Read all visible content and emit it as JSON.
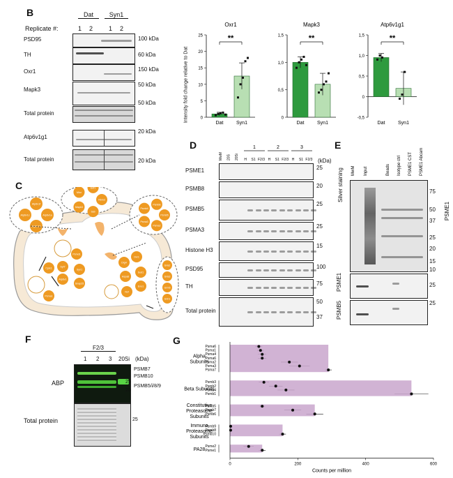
{
  "panel_b": {
    "label": "B",
    "replicate_label": "Replicate #:",
    "groups": [
      "Dat",
      "Syn1"
    ],
    "replicates": [
      "1",
      "2",
      "1",
      "2"
    ],
    "rows": [
      {
        "name": "PSD95",
        "kda": "100 kDa"
      },
      {
        "name": "TH",
        "kda": "60 kDa"
      },
      {
        "name": "Oxr1",
        "kda": "150 kDa"
      },
      {
        "name": "Mapk3",
        "kda": "50 kDa"
      },
      {
        "name": "",
        "kda": "50 kDa"
      },
      {
        "name": "Total protein",
        "kda": ""
      },
      {
        "name": "Atp6v1g1",
        "kda": "20 kDa"
      },
      {
        "name": "Total protein",
        "kda": "20 kDa"
      }
    ]
  },
  "panel_b_charts": {
    "ylabel": "Intensity fold change relative to Dat",
    "significance": "**"
  },
  "chart_data": [
    {
      "type": "bar",
      "title": "Oxr1",
      "categories": [
        "Dat",
        "Syn1"
      ],
      "values": [
        1,
        12.5
      ],
      "errors": [
        0.5,
        4
      ],
      "points": [
        [
          0.6,
          1.0,
          1.2,
          1.4,
          0.8
        ],
        [
          6,
          10,
          12,
          17,
          18
        ]
      ],
      "ylim": [
        0,
        25
      ],
      "yticks": [
        "0",
        "5",
        "10",
        "15",
        "20",
        "25"
      ],
      "colors": [
        "#2e9a3e",
        "#b8dfb3"
      ]
    },
    {
      "type": "bar",
      "title": "Mapk3",
      "categories": [
        "Dat",
        "Syn1"
      ],
      "values": [
        1.0,
        0.6
      ],
      "errors": [
        0.1,
        0.2
      ],
      "points": [
        [
          0.9,
          1.0,
          1.05,
          1.1,
          0.95
        ],
        [
          0.45,
          0.5,
          0.6,
          0.65,
          0.8
        ]
      ],
      "ylim": [
        0,
        1.5
      ],
      "yticks": [
        "0",
        "0,5",
        "1,0",
        "1,5"
      ],
      "colors": [
        "#2e9a3e",
        "#b8dfb3"
      ]
    },
    {
      "type": "bar",
      "title": "Atp6v1g1",
      "categories": [
        "Dat",
        "Syn1"
      ],
      "values": [
        0.95,
        0.2
      ],
      "errors": [
        0.1,
        0.4
      ],
      "points": [
        [
          0.9,
          1.0,
          0.95
        ],
        [
          -0.05,
          0.05,
          0.6
        ]
      ],
      "ylim": [
        -0.5,
        1.5
      ],
      "yticks": [
        "-0,5",
        "0",
        "0,5",
        "1,0",
        "1,5"
      ],
      "colors": [
        "#2e9a3e",
        "#b8dfb3"
      ]
    },
    {
      "type": "bar",
      "xlabel": "Counts per million",
      "xlim": [
        0,
        600
      ],
      "xticks": [
        "0",
        "200",
        "400",
        "600"
      ],
      "groups": [
        {
          "name": "Alpha Subunits",
          "items": [
            {
              "label": "Psma6",
              "value": 85,
              "err": 10
            },
            {
              "label": "Psma1",
              "value": 90,
              "err": 10
            },
            {
              "label": "Psma4",
              "value": 95,
              "err": 12
            },
            {
              "label": "Psma6",
              "value": 95,
              "err": 12
            },
            {
              "label": "Psma2",
              "value": 175,
              "err": 25
            },
            {
              "label": "Psma3",
              "value": 205,
              "err": 30
            },
            {
              "label": "Psma7",
              "value": 290,
              "err": 10
            }
          ]
        },
        {
          "name": "Beta Subunits",
          "items": [
            {
              "label": "Psmb3",
              "value": 100,
              "err": 15
            },
            {
              "label": "Psmb2",
              "value": 135,
              "err": 20
            },
            {
              "label": "Psmb4",
              "value": 165,
              "err": 25
            },
            {
              "label": "Psmb1",
              "value": 535,
              "err": 50
            }
          ]
        },
        {
          "name": "Constitutive Proteasome Subunits",
          "items": [
            {
              "label": "Psmb5",
              "value": 95,
              "err": 8
            },
            {
              "label": "Psmb7",
              "value": 185,
              "err": 25
            },
            {
              "label": "Psmb6",
              "value": 250,
              "err": 25
            }
          ]
        },
        {
          "name": "Immuno Proteasome Subunits",
          "items": [
            {
              "label": "Psmb9",
              "value": 2,
              "err": 1
            },
            {
              "label": "Psmb8",
              "value": 2,
              "err": 1
            },
            {
              "label": "Psmb10",
              "value": 155,
              "err": 10
            }
          ]
        },
        {
          "name": "PA28",
          "items": [
            {
              "label": "Psme2",
              "value": 55,
              "err": 15
            },
            {
              "label": "Psme1",
              "value": 95,
              "err": 10
            }
          ]
        }
      ]
    }
  ],
  "panel_c": {
    "label": "C",
    "left_cluster": [
      "Atp6v1a",
      "Atp6v1h",
      "Atp6v1c",
      "Atp6v1f"
    ],
    "top_cluster": [
      "Rbm3",
      "Ssb",
      "Mapk3",
      "Mtor",
      "Edf1"
    ],
    "psme_cluster": [
      "Psmb5",
      "Psma2",
      "Psma3",
      "Psmb4",
      "Psmb6"
    ],
    "right_cluster": [
      "Gria2",
      "Gria3",
      "Grm5",
      "Grin1"
    ],
    "bottom_cluster": [
      "Psmd1",
      "Syt7",
      "Syn1",
      "Cplx1",
      "Atp6v1",
      "Snap25",
      "Dlg4",
      "Oxr1",
      "Hspa8",
      "Sod1",
      "Eno1",
      "Nsf",
      "Psma1"
    ],
    "dendrite_cluster": [
      "Shank1",
      "Dlg4",
      "Snap",
      "Psd95"
    ]
  },
  "panel_d": {
    "label": "D",
    "kda_label": "(kDa)",
    "lane_groups": [
      "1",
      "2",
      "3"
    ],
    "lanes": [
      "MwM",
      "20S",
      "20Si",
      "H",
      "S1",
      "F2/3",
      "H",
      "S1",
      "F2/3",
      "H",
      "S1",
      "F2/3"
    ],
    "rows": [
      {
        "name": "PSME1",
        "kda": "25"
      },
      {
        "name": "PSMB8",
        "kda": "20"
      },
      {
        "name": "PSMB5",
        "kda": "25"
      },
      {
        "name": "PSMA3",
        "kda": "25"
      },
      {
        "name": "Histone H3",
        "kda": "15"
      },
      {
        "name": "PSD95",
        "kda": "100"
      },
      {
        "name": "TH",
        "kda": "75"
      },
      {
        "name": "Total protein",
        "kda": "50"
      }
    ],
    "extra_kda": [
      "37"
    ]
  },
  "panel_e": {
    "label": "E",
    "lanes": [
      "MwM",
      "Input",
      "Beads",
      "Isotype ctrl",
      "PSME1 CST",
      "PSME1 Abcam"
    ],
    "silver_label": "Silver staining",
    "psme1_label": "PSME1",
    "kda_marks": [
      "75",
      "50",
      "37",
      "25",
      "20",
      "15",
      "10"
    ],
    "rows": [
      {
        "name": "PSME1",
        "kda": "25"
      },
      {
        "name": "PSMB5",
        "kda": "25"
      }
    ]
  },
  "panel_f": {
    "label": "F",
    "group_label": "F2/3",
    "kda_label": "(kDa)",
    "lanes": [
      "1",
      "2",
      "3",
      "20Si"
    ],
    "abp_label": "ABP",
    "total_label": "Total protein",
    "band_labels": [
      "PSMB7",
      "PSMB10",
      "PSMB5/i/8/9"
    ],
    "kda_marks": [
      "25",
      "20",
      "25"
    ]
  },
  "panel_g": {
    "label": "G"
  }
}
